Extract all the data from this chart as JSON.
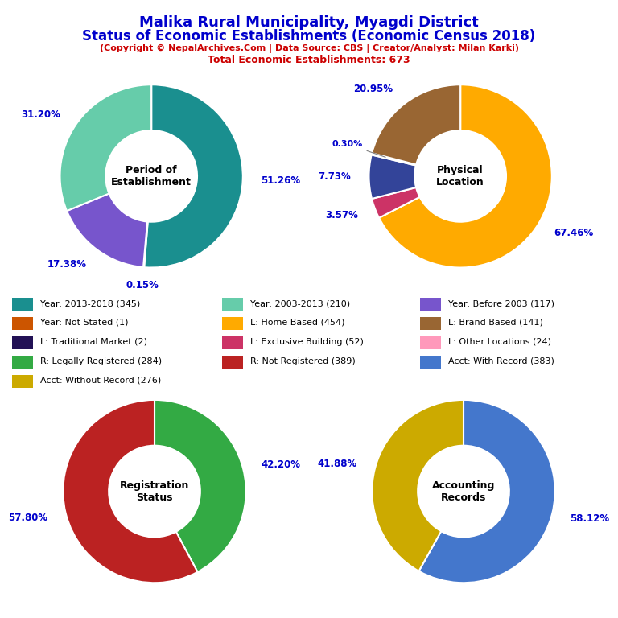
{
  "title_line1": "Malika Rural Municipality, Myagdi District",
  "title_line2": "Status of Economic Establishments (Economic Census 2018)",
  "subtitle": "(Copyright © NepalArchives.Com | Data Source: CBS | Creator/Analyst: Milan Karki)",
  "subtitle2": "Total Economic Establishments: 673",
  "title_color": "#0000cc",
  "subtitle_color": "#cc0000",
  "pie1": {
    "label": "Period of\nEstablishment",
    "values": [
      51.26,
      0.15,
      17.38,
      31.2
    ],
    "colors": [
      "#1a8f8f",
      "#cc5500",
      "#7755cc",
      "#66ccaa"
    ],
    "pct_labels": [
      "51.26%",
      "0.15%",
      "17.38%",
      "31.20%"
    ],
    "startangle": 90
  },
  "pie2": {
    "label": "Physical\nLocation",
    "values": [
      67.46,
      3.57,
      7.73,
      0.3,
      20.95
    ],
    "colors": [
      "#ffaa00",
      "#cc3366",
      "#334499",
      "#221155",
      "#996633"
    ],
    "pct_labels": [
      "67.46%",
      "3.57%",
      "7.73%",
      "0.30%",
      "20.95%"
    ],
    "startangle": 90
  },
  "pie3": {
    "label": "Registration\nStatus",
    "values": [
      42.2,
      57.8
    ],
    "colors": [
      "#33aa44",
      "#bb2222"
    ],
    "pct_labels": [
      "42.20%",
      "57.80%"
    ],
    "startangle": 90
  },
  "pie4": {
    "label": "Accounting\nRecords",
    "values": [
      58.12,
      41.88
    ],
    "colors": [
      "#4477cc",
      "#ccaa00"
    ],
    "pct_labels": [
      "58.12%",
      "41.88%"
    ],
    "startangle": 90
  },
  "legend_items_col0": [
    {
      "label": "Year: 2013-2018 (345)",
      "color": "#1a8f8f"
    },
    {
      "label": "Year: Not Stated (1)",
      "color": "#cc5500"
    },
    {
      "label": "L: Traditional Market (2)",
      "color": "#221155"
    },
    {
      "label": "R: Legally Registered (284)",
      "color": "#33aa44"
    },
    {
      "label": "Acct: Without Record (276)",
      "color": "#ccaa00"
    }
  ],
  "legend_items_col1": [
    {
      "label": "Year: 2003-2013 (210)",
      "color": "#66ccaa"
    },
    {
      "label": "L: Home Based (454)",
      "color": "#ffaa00"
    },
    {
      "label": "L: Exclusive Building (52)",
      "color": "#cc3366"
    },
    {
      "label": "R: Not Registered (389)",
      "color": "#bb2222"
    }
  ],
  "legend_items_col2": [
    {
      "label": "Year: Before 2003 (117)",
      "color": "#7755cc"
    },
    {
      "label": "L: Brand Based (141)",
      "color": "#996633"
    },
    {
      "label": "L: Other Locations (24)",
      "color": "#ff99bb"
    },
    {
      "label": "Acct: With Record (383)",
      "color": "#4477cc"
    }
  ],
  "pct_color": "#0000cc",
  "center_label_color": "#000000",
  "bg_color": "#ffffff"
}
